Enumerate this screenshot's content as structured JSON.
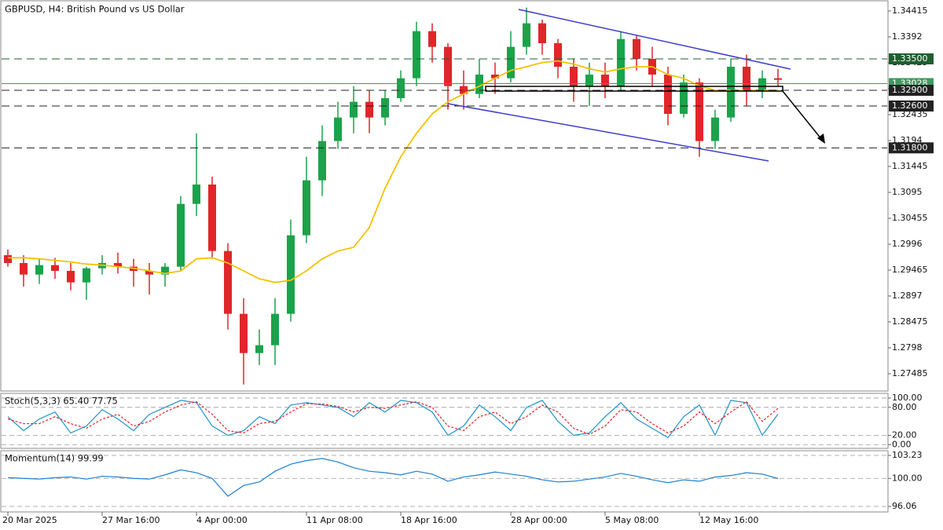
{
  "chart_data": [
    {
      "type": "candlestick",
      "title": "GBPUSD, H4:  British Pound vs US Dollar",
      "categories": [
        "20 Mar 2025",
        null,
        null,
        null,
        null,
        null,
        "27 Mar 16:00",
        null,
        null,
        null,
        null,
        null,
        "4 Apr 00:00",
        null,
        null,
        null,
        null,
        null,
        null,
        "11 Apr 08:00",
        null,
        null,
        null,
        null,
        null,
        "18 Apr 16:00",
        null,
        null,
        null,
        null,
        null,
        null,
        "28 Apr 00:00",
        null,
        null,
        null,
        null,
        null,
        "5 May 08:00",
        null,
        null,
        null,
        null,
        null,
        "12 May 16:00",
        null,
        null,
        null,
        null,
        null
      ],
      "open": [
        1.2975,
        1.296,
        1.2938,
        1.2956,
        1.2945,
        1.2923,
        1.295,
        1.296,
        1.2953,
        1.2945,
        1.2938,
        1.2953,
        1.3073,
        1.311,
        1.2983,
        1.2863,
        1.2788,
        1.2803,
        1.2863,
        1.3013,
        1.3118,
        1.3193,
        1.3238,
        1.3268,
        1.3238,
        1.3275,
        1.3313,
        1.3403,
        1.3373,
        1.3298,
        1.3283,
        1.332,
        1.3313,
        1.3373,
        1.3418,
        1.338,
        1.3335,
        1.3298,
        1.332,
        1.3298,
        1.3388,
        1.335,
        1.332,
        1.3245,
        1.3305,
        1.3193,
        1.3238,
        1.3335,
        1.329,
        1.3313
      ],
      "high": [
        1.2986,
        1.2975,
        1.2968,
        1.297,
        1.296,
        1.2953,
        1.2975,
        1.298,
        1.2968,
        1.296,
        1.296,
        1.3088,
        1.3208,
        1.3125,
        1.2998,
        1.2893,
        1.2833,
        1.2893,
        1.3043,
        1.3163,
        1.3223,
        1.3268,
        1.3298,
        1.329,
        1.329,
        1.3328,
        1.3421,
        1.3418,
        1.338,
        1.3328,
        1.335,
        1.3343,
        1.3403,
        1.3448,
        1.3425,
        1.3388,
        1.335,
        1.3343,
        1.3343,
        1.3403,
        1.3395,
        1.3373,
        1.3335,
        1.332,
        1.3313,
        1.3253,
        1.335,
        1.3358,
        1.3328,
        1.3331
      ],
      "low": [
        1.2953,
        1.2915,
        1.292,
        1.293,
        1.2908,
        1.289,
        1.2938,
        1.294,
        1.2915,
        1.29,
        1.2915,
        1.2945,
        1.305,
        1.2968,
        1.2833,
        1.2728,
        1.2765,
        1.2765,
        1.2848,
        1.2998,
        1.3088,
        1.3178,
        1.3208,
        1.3208,
        1.3223,
        1.3268,
        1.3298,
        1.3343,
        1.3253,
        1.3253,
        1.3275,
        1.3283,
        1.3305,
        1.3358,
        1.3358,
        1.3313,
        1.3268,
        1.326,
        1.3275,
        1.329,
        1.3328,
        1.3298,
        1.3223,
        1.3238,
        1.3163,
        1.3178,
        1.323,
        1.326,
        1.3275,
        1.3298
      ],
      "close": [
        1.296,
        1.2938,
        1.2956,
        1.2945,
        1.2923,
        1.295,
        1.296,
        1.2953,
        1.2945,
        1.2938,
        1.2953,
        1.3073,
        1.311,
        1.2983,
        1.2863,
        1.2788,
        1.2803,
        1.2863,
        1.3013,
        1.3118,
        1.3193,
        1.3238,
        1.3268,
        1.3238,
        1.3275,
        1.3313,
        1.3403,
        1.3373,
        1.3298,
        1.3283,
        1.332,
        1.3313,
        1.3373,
        1.3418,
        1.338,
        1.3335,
        1.3298,
        1.332,
        1.3298,
        1.3388,
        1.335,
        1.332,
        1.3245,
        1.3305,
        1.3193,
        1.3238,
        1.3335,
        1.329,
        1.3313,
        1.331
      ],
      "up_color": "#1aa34a",
      "down_color": "#e0262a",
      "ma": {
        "color": "#f2c200",
        "values": [
          1.297,
          1.297,
          1.2968,
          1.2965,
          1.2962,
          1.2958,
          1.2956,
          1.2953,
          1.295,
          1.2945,
          1.294,
          1.2945,
          1.2968,
          1.297,
          1.296,
          1.2945,
          1.293,
          1.2923,
          1.2927,
          1.2945,
          1.2968,
          1.2983,
          1.299,
          1.3028,
          1.3103,
          1.3163,
          1.3208,
          1.3245,
          1.3268,
          1.3283,
          1.3298,
          1.3313,
          1.3328,
          1.3335,
          1.3343,
          1.3346,
          1.334,
          1.3331,
          1.3325,
          1.3331,
          1.3335,
          1.3335,
          1.332,
          1.3313,
          1.3298,
          1.329,
          1.329,
          1.329,
          1.329,
          1.329
        ]
      },
      "levels": [
        {
          "value": 1.335,
          "label": "1.33500",
          "color": "#1f5f2f",
          "style": "dashed"
        },
        {
          "value": 1.33028,
          "label": "1.33028",
          "color": "#3c9a5f",
          "style": "solid"
        },
        {
          "value": 1.329,
          "label": "1.32900",
          "color": "#222222",
          "style": "dashed"
        },
        {
          "value": 1.326,
          "label": "1.32600",
          "color": "#222222",
          "style": "dashed"
        },
        {
          "value": 1.318,
          "label": "1.31800",
          "color": "#222222",
          "style": "dashed"
        }
      ],
      "ylim": [
        1.27155,
        1.34595
      ],
      "yticks": [
        1.34415,
        1.3392,
        1.33425,
        1.3293,
        1.32435,
        1.3194,
        1.31445,
        1.3095,
        1.30455,
        1.2996,
        1.29465,
        1.2897,
        1.28475,
        1.2798,
        1.27485
      ]
    },
    {
      "type": "line",
      "title": "Stoch(5,3,3) 65.40 77.75",
      "series": [
        {
          "color": "#1e94c8",
          "style": "solid",
          "values": [
            60,
            30,
            55,
            70,
            25,
            40,
            75,
            55,
            30,
            65,
            80,
            95,
            90,
            40,
            20,
            30,
            60,
            45,
            85,
            90,
            85,
            80,
            60,
            90,
            70,
            95,
            90,
            70,
            20,
            40,
            85,
            60,
            30,
            80,
            95,
            50,
            20,
            25,
            60,
            90,
            55,
            35,
            15,
            60,
            85,
            20,
            95,
            90,
            20,
            65.4
          ]
        },
        {
          "color": "#e0262a",
          "style": "dashed",
          "values": [
            55,
            45,
            45,
            60,
            45,
            35,
            55,
            65,
            40,
            50,
            70,
            85,
            92,
            65,
            30,
            25,
            45,
            50,
            70,
            88,
            87,
            82,
            70,
            80,
            78,
            85,
            92,
            80,
            40,
            30,
            60,
            70,
            45,
            60,
            85,
            70,
            35,
            22,
            40,
            75,
            70,
            45,
            25,
            40,
            70,
            45,
            70,
            92,
            50,
            77.75
          ]
        }
      ],
      "ylim": [
        -8,
        110
      ],
      "yticks": [
        {
          "value": 100,
          "label": "100.00"
        },
        {
          "value": 80,
          "label": "80.00"
        },
        {
          "value": 20,
          "label": "20.00"
        },
        {
          "value": 0,
          "label": "0.00"
        }
      ]
    },
    {
      "type": "line",
      "title": "Momentum(14) 99.99",
      "series": [
        {
          "color": "#1e7fd0",
          "style": "solid",
          "values": [
            100.1,
            100,
            99.9,
            100.1,
            100.2,
            99.9,
            100.3,
            100.2,
            100,
            99.9,
            100.5,
            101.2,
            100.8,
            100,
            97.5,
            99,
            99.5,
            101,
            102,
            102.5,
            102.8,
            102.3,
            101.5,
            101,
            100.8,
            100.5,
            101,
            100.6,
            99.6,
            100.2,
            100.5,
            100.9,
            100.6,
            100.3,
            99.8,
            99.5,
            99.6,
            99.9,
            100.2,
            100.7,
            100.3,
            99.8,
            99.4,
            99.8,
            99.6,
            100.2,
            100.4,
            100.8,
            100.6,
            99.99
          ]
        }
      ],
      "ylim": [
        95.29,
        103.89
      ],
      "yticks": [
        103.23,
        {
          "value": 100,
          "label": "100.00"
        },
        96.06
      ]
    }
  ]
}
